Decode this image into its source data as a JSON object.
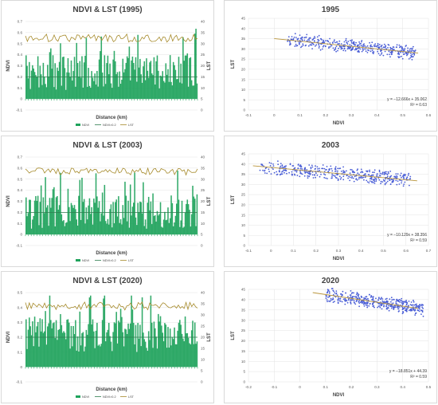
{
  "colors": {
    "ndvi": "#1fa35c",
    "ndvi_threshold": "#2e7d4f",
    "lst": "#a68a2a",
    "scatter": "#4a5ed6",
    "trend": "#b8943a",
    "grid": "#e3e3e3",
    "axis": "#bfbfbf"
  },
  "chart_data": [
    {
      "type": "bar",
      "title": "NDVI & LST (1995)",
      "xlabel": "Distance (km)",
      "ylabel": "NDVI",
      "y2label": "LST",
      "ylim": [
        -0.1,
        0.7
      ],
      "y2lim": [
        0,
        40
      ],
      "yticks": [
        "-0.1",
        "0",
        "0.1",
        "0.2",
        "0.3",
        "0.4",
        "0.5",
        "0.6",
        "0.7"
      ],
      "y2ticks": [
        "0",
        "5",
        "10",
        "15",
        "20",
        "25",
        "30",
        "35",
        "40"
      ],
      "grid": true,
      "legend": [
        "NDVI",
        "NDVI>0.2",
        "LST"
      ],
      "legend_position": "bottom",
      "ndvi_mean": 0.24,
      "ndvi_spread": 0.16,
      "lst_mean": 32.5,
      "lst_spread": 1.8,
      "threshold": 0.2
    },
    {
      "type": "scatter",
      "title": "1995",
      "xlabel": "NDVI",
      "ylabel": "LST",
      "xlim": [
        -0.1,
        0.6
      ],
      "ylim": [
        0,
        45
      ],
      "xticks": [
        "-0.1",
        "0",
        "0.1",
        "0.2",
        "0.3",
        "0.4",
        "0.5",
        "0.6"
      ],
      "yticks": [
        "0",
        "5",
        "10",
        "15",
        "20",
        "25",
        "30",
        "35",
        "40",
        "45"
      ],
      "grid": true,
      "trendline": {
        "slope": -12.666,
        "intercept": 35.062
      },
      "equation": "y = −12.666x + 35.062",
      "r2": "R² = 0.63",
      "x_range": [
        0.05,
        0.55
      ]
    },
    {
      "type": "bar",
      "title": "NDVI & LST (2003)",
      "xlabel": "Distance (km)",
      "ylabel": "NDVI",
      "y2label": "LST",
      "ylim": [
        -0.1,
        0.7
      ],
      "y2lim": [
        0,
        40
      ],
      "yticks": [
        "-0.1",
        "0",
        "0.1",
        "0.2",
        "0.3",
        "0.4",
        "0.5",
        "0.6",
        "0.7"
      ],
      "y2ticks": [
        "0",
        "5",
        "10",
        "15",
        "20",
        "25",
        "30",
        "35",
        "40"
      ],
      "grid": true,
      "legend": [
        "NDVI",
        "NDVI>0.2",
        "LST"
      ],
      "legend_position": "bottom",
      "ndvi_mean": 0.2,
      "ndvi_spread": 0.15,
      "lst_mean": 33.5,
      "lst_spread": 1.6,
      "threshold": 0.2
    },
    {
      "type": "scatter",
      "title": "2003",
      "xlabel": "NDVI",
      "ylabel": "LST",
      "xlim": [
        -0.1,
        0.7
      ],
      "ylim": [
        0,
        45
      ],
      "xticks": [
        "-0.1",
        "0",
        "0.1",
        "0.2",
        "0.3",
        "0.4",
        "0.5",
        "0.6",
        "0.7"
      ],
      "yticks": [
        "0",
        "5",
        "10",
        "15",
        "20",
        "25",
        "30",
        "35",
        "40",
        "45"
      ],
      "grid": true,
      "trendline": {
        "slope": -10.129,
        "intercept": 38.356
      },
      "equation": "y = −10.129x + 38.356",
      "r2": "R² = 0.59",
      "x_range": [
        -0.05,
        0.62
      ]
    },
    {
      "type": "bar",
      "title": "NDVI & LST (2020)",
      "xlabel": "Distance (km)",
      "ylabel": "NDVI",
      "y2label": "LST",
      "ylim": [
        -0.1,
        0.5
      ],
      "y2lim": [
        0,
        40
      ],
      "yticks": [
        "-0.1",
        "0",
        "0.1",
        "0.2",
        "0.3",
        "0.4",
        "0.5"
      ],
      "y2ticks": [
        "0",
        "5",
        "10",
        "15",
        "20",
        "25",
        "30",
        "35",
        "40"
      ],
      "grid": true,
      "legend": [
        "NDVI",
        "NDVI>0.2",
        "LST"
      ],
      "legend_position": "bottom",
      "ndvi_mean": 0.22,
      "ndvi_spread": 0.12,
      "lst_mean": 34,
      "lst_spread": 1.8,
      "threshold": 0.2
    },
    {
      "type": "scatter",
      "title": "2020",
      "xlabel": "NDVI",
      "ylabel": "LST",
      "xlim": [
        -0.2,
        0.5
      ],
      "ylim": [
        0,
        45
      ],
      "xticks": [
        "-0.2",
        "-0.1",
        "0",
        "0.1",
        "0.2",
        "0.3",
        "0.4",
        "0.5"
      ],
      "yticks": [
        "0",
        "5",
        "10",
        "15",
        "20",
        "25",
        "30",
        "35",
        "40",
        "45"
      ],
      "grid": true,
      "trendline": {
        "slope": -18.851,
        "intercept": 44.39
      },
      "equation": "y = −18.851x + 44.39",
      "r2": "R² = 0.59",
      "x_range": [
        0.1,
        0.48
      ]
    }
  ]
}
